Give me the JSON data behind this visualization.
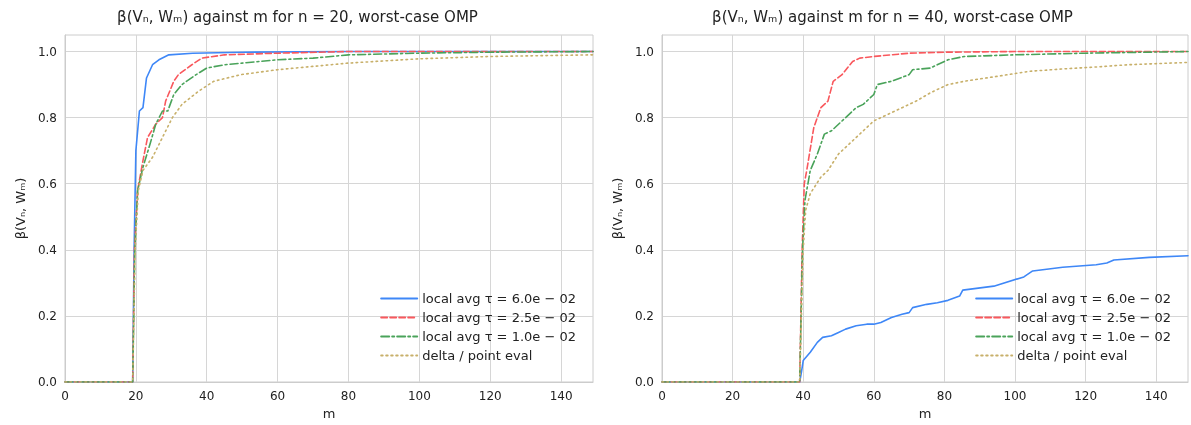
{
  "chart_data": [
    {
      "type": "line",
      "title": "β(Vₙ, Wₘ) against m for n = 20, worst-case OMP",
      "xlabel": "m",
      "ylabel": "β(Vₙ, Wₘ)",
      "xlim": [
        0,
        149
      ],
      "ylim": [
        0,
        1.05
      ],
      "xticks": [
        0,
        20,
        40,
        60,
        80,
        100,
        120,
        140
      ],
      "yticks": [
        {
          "value": 0,
          "label": "0.0"
        },
        {
          "value": 0.2,
          "label": "0.2"
        },
        {
          "value": 0.4,
          "label": "0.4"
        },
        {
          "value": 0.6,
          "label": "0.6"
        },
        {
          "value": 0.8,
          "label": "0.8"
        },
        {
          "value": 1,
          "label": "1.0"
        }
      ],
      "grid": true,
      "legend": "bottom right",
      "marker": "none",
      "series": [
        {
          "name": "local avg τ = 6.0e − 02",
          "color": "#3e87f7",
          "line_style": "solid",
          "x": [
            0,
            19.1,
            19.5,
            20,
            21,
            22,
            23,
            24.7,
            26.5,
            29.3,
            36,
            50,
            80,
            149
          ],
          "values": [
            0,
            0,
            0.4,
            0.7,
            0.82,
            0.83,
            0.92,
            0.96,
            0.975,
            0.99,
            0.995,
            0.998,
            1.0,
            1.0
          ]
        },
        {
          "name": "local avg τ = 2.5e − 02",
          "color": "#f9585d",
          "line_style": "dashed",
          "x": [
            0,
            19.1,
            19.6,
            20.5,
            22,
            23.3,
            25.6,
            27.5,
            28.4,
            30.7,
            32,
            35.8,
            38.6,
            45,
            60,
            80,
            149
          ],
          "values": [
            0,
            0,
            0.4,
            0.58,
            0.67,
            0.74,
            0.78,
            0.8,
            0.85,
            0.91,
            0.93,
            0.96,
            0.98,
            0.99,
            0.995,
            1.0,
            1.0
          ]
        },
        {
          "name": "local avg τ = 1.0e − 02",
          "color": "#4aa35a",
          "line_style": "dashdot",
          "x": [
            0,
            19.1,
            19.7,
            20.5,
            22,
            24,
            25.6,
            27.5,
            29,
            30.7,
            33,
            37,
            40,
            45,
            50,
            60,
            70,
            80,
            100,
            120,
            149
          ],
          "values": [
            0,
            0,
            0.4,
            0.58,
            0.65,
            0.72,
            0.78,
            0.82,
            0.82,
            0.87,
            0.9,
            0.93,
            0.95,
            0.96,
            0.965,
            0.975,
            0.98,
            0.99,
            0.995,
            0.998,
            1.0
          ]
        },
        {
          "name": "delta / point eval",
          "color": "#c8b06a",
          "line_style": "dotted",
          "x": [
            0,
            19.1,
            19.8,
            20.7,
            22,
            24.7,
            27.5,
            30.3,
            33,
            37.7,
            42,
            49.6,
            60,
            80,
            100,
            120,
            149
          ],
          "values": [
            0,
            0,
            0.4,
            0.58,
            0.64,
            0.68,
            0.74,
            0.8,
            0.84,
            0.88,
            0.91,
            0.93,
            0.945,
            0.965,
            0.978,
            0.985,
            0.99
          ]
        }
      ]
    },
    {
      "type": "line",
      "title": "β(Vₙ, Wₘ) against m for n = 40, worst-case OMP",
      "xlabel": "m",
      "ylabel": "β(Vₙ, Wₘ)",
      "xlim": [
        0,
        149
      ],
      "ylim": [
        0,
        1.05
      ],
      "xticks": [
        0,
        20,
        40,
        60,
        80,
        100,
        120,
        140
      ],
      "yticks": [
        {
          "value": 0,
          "label": "0.0"
        },
        {
          "value": 0.2,
          "label": "0.2"
        },
        {
          "value": 0.4,
          "label": "0.4"
        },
        {
          "value": 0.6,
          "label": "0.6"
        },
        {
          "value": 0.8,
          "label": "0.8"
        },
        {
          "value": 1,
          "label": "1.0"
        }
      ],
      "grid": true,
      "legend": "bottom right",
      "marker": "none",
      "series": [
        {
          "name": "local avg τ = 6.0e − 02",
          "color": "#3e87f7",
          "line_style": "solid",
          "x": [
            0,
            39,
            39.5,
            40,
            42,
            44,
            45.5,
            48,
            50,
            52,
            55,
            58,
            60,
            62,
            65,
            68,
            70,
            71,
            75,
            78,
            81,
            84.3,
            85.2,
            94,
            102.5,
            105,
            113.5,
            123,
            126,
            128,
            138,
            149
          ],
          "values": [
            0,
            0,
            0.03,
            0.065,
            0.09,
            0.12,
            0.135,
            0.14,
            0.15,
            0.16,
            0.17,
            0.175,
            0.175,
            0.18,
            0.195,
            0.205,
            0.21,
            0.225,
            0.235,
            0.24,
            0.247,
            0.26,
            0.278,
            0.29,
            0.318,
            0.336,
            0.347,
            0.355,
            0.36,
            0.369,
            0.377,
            0.382
          ]
        },
        {
          "name": "local avg τ = 2.5e − 02",
          "color": "#f9585d",
          "line_style": "dashed",
          "x": [
            0,
            39,
            39.7,
            40.3,
            41,
            43,
            45,
            47,
            48.5,
            51,
            54,
            56,
            60,
            65,
            70,
            80,
            100,
            149
          ],
          "values": [
            0,
            0,
            0.4,
            0.6,
            0.64,
            0.77,
            0.83,
            0.85,
            0.91,
            0.93,
            0.97,
            0.98,
            0.985,
            0.99,
            0.995,
            0.998,
            1.0,
            1.0
          ]
        },
        {
          "name": "local avg τ = 1.0e − 02",
          "color": "#4aa35a",
          "line_style": "dashdot",
          "x": [
            0,
            39,
            39.8,
            40.5,
            42,
            44,
            46,
            48,
            50,
            52,
            55,
            57,
            60,
            61,
            65,
            70,
            71,
            76,
            81,
            85.6,
            100,
            120,
            149
          ],
          "values": [
            0,
            0,
            0.4,
            0.55,
            0.64,
            0.69,
            0.75,
            0.76,
            0.78,
            0.8,
            0.83,
            0.84,
            0.87,
            0.9,
            0.91,
            0.93,
            0.945,
            0.95,
            0.975,
            0.985,
            0.99,
            0.995,
            1.0
          ]
        },
        {
          "name": "delta / point eval",
          "color": "#c8b06a",
          "line_style": "dotted",
          "x": [
            0,
            39,
            40,
            40.7,
            42,
            45,
            47,
            50,
            53,
            56,
            60,
            64,
            68,
            72,
            76,
            81,
            85.6,
            95,
            104,
            113,
            122.6,
            132,
            149
          ],
          "values": [
            0,
            0,
            0.4,
            0.52,
            0.57,
            0.62,
            0.64,
            0.69,
            0.72,
            0.75,
            0.79,
            0.81,
            0.83,
            0.85,
            0.875,
            0.9,
            0.91,
            0.925,
            0.94,
            0.947,
            0.953,
            0.96,
            0.967
          ]
        }
      ]
    }
  ]
}
